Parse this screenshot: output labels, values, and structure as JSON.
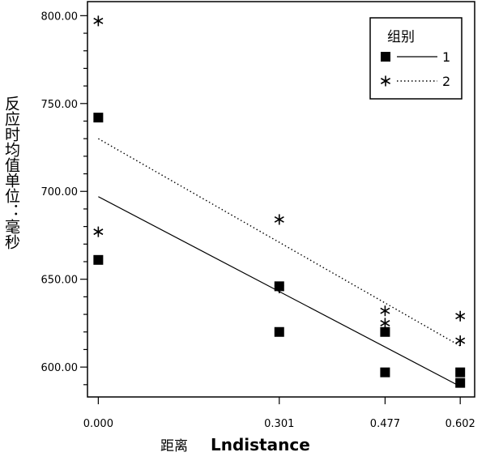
{
  "chart_data": {
    "type": "scatter",
    "xlabel_cn": "距离",
    "xlabel": "Lndistance",
    "ylabel": "反应时均值单位：毫秒",
    "xticks": [
      0.0,
      0.301,
      0.477,
      0.602
    ],
    "xtick_labels": [
      "0.000",
      "0.301",
      "0.477",
      "0.602"
    ],
    "xlim": [
      -0.018,
      0.626
    ],
    "ylim": [
      583,
      808
    ],
    "yticks": [
      600,
      650,
      700,
      750,
      800
    ],
    "ytick_labels": [
      "600.00",
      "650.00",
      "700.00",
      "750.00",
      "800.00"
    ],
    "legend": {
      "title": "组别",
      "placement": "top-right"
    },
    "series": [
      {
        "name": "1",
        "marker": "square",
        "line_style": "solid",
        "points": [
          [
            0.0,
            742
          ],
          [
            0.0,
            661
          ],
          [
            0.301,
            646
          ],
          [
            0.301,
            620
          ],
          [
            0.477,
            620
          ],
          [
            0.477,
            597
          ],
          [
            0.602,
            597
          ],
          [
            0.602,
            591
          ]
        ],
        "fit_line": [
          [
            0.0,
            697
          ],
          [
            0.602,
            589
          ]
        ]
      },
      {
        "name": "2",
        "marker": "asterisk",
        "line_style": "dotted",
        "points": [
          [
            0.0,
            797
          ],
          [
            0.0,
            677
          ],
          [
            0.301,
            684
          ],
          [
            0.301,
            645
          ],
          [
            0.477,
            632
          ],
          [
            0.477,
            625
          ],
          [
            0.602,
            629
          ],
          [
            0.602,
            615
          ]
        ],
        "fit_line": [
          [
            0.0,
            730
          ],
          [
            0.602,
            612
          ]
        ]
      }
    ]
  }
}
